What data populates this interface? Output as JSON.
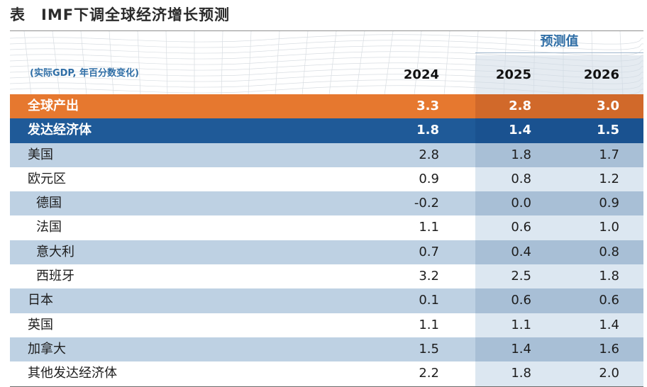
{
  "title": {
    "prefix": "表",
    "text": "IMF下调全球经济增长预测"
  },
  "header": {
    "forecast_label": "预测值",
    "unit_note": "(实际GDP, 年百分数变化)",
    "years": [
      "2024",
      "2025",
      "2026"
    ]
  },
  "rows": [
    {
      "label": "全球产出",
      "values": [
        "3.3",
        "2.8",
        "3.0"
      ],
      "style": "orange",
      "indent": false
    },
    {
      "label": "发达经济体",
      "values": [
        "1.8",
        "1.4",
        "1.5"
      ],
      "style": "navy",
      "indent": false
    },
    {
      "label": "美国",
      "values": [
        "2.8",
        "1.8",
        "1.7"
      ],
      "style": "shaded",
      "indent": false
    },
    {
      "label": "欧元区",
      "values": [
        "0.9",
        "0.8",
        "1.2"
      ],
      "style": "plain",
      "indent": false
    },
    {
      "label": "德国",
      "values": [
        "-0.2",
        "0.0",
        "0.9"
      ],
      "style": "shaded",
      "indent": true
    },
    {
      "label": "法国",
      "values": [
        "1.1",
        "0.6",
        "1.0"
      ],
      "style": "plain",
      "indent": true
    },
    {
      "label": "意大利",
      "values": [
        "0.7",
        "0.4",
        "0.8"
      ],
      "style": "shaded",
      "indent": true
    },
    {
      "label": "西班牙",
      "values": [
        "3.2",
        "2.5",
        "1.8"
      ],
      "style": "plain",
      "indent": true
    },
    {
      "label": "日本",
      "values": [
        "0.1",
        "0.6",
        "0.6"
      ],
      "style": "shaded",
      "indent": false
    },
    {
      "label": "英国",
      "values": [
        "1.1",
        "1.1",
        "1.4"
      ],
      "style": "plain",
      "indent": false
    },
    {
      "label": "加拿大",
      "values": [
        "1.5",
        "1.4",
        "1.6"
      ],
      "style": "shaded",
      "indent": false
    },
    {
      "label": "其他发达经济体",
      "values": [
        "2.2",
        "1.8",
        "2.0"
      ],
      "style": "plain",
      "indent": false
    }
  ]
}
